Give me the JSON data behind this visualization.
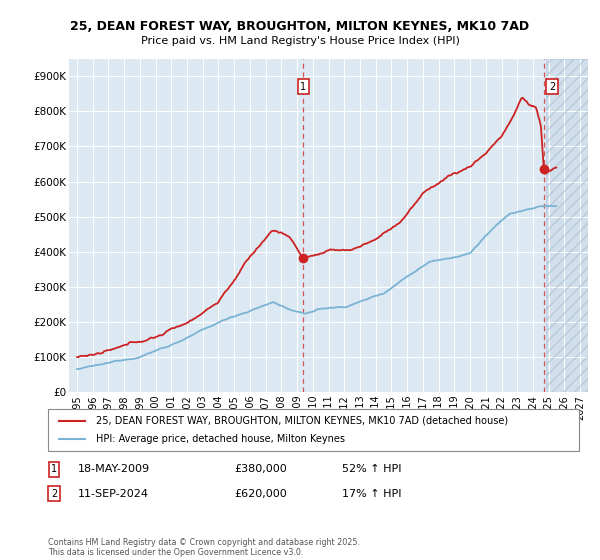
{
  "title_line1": "25, DEAN FOREST WAY, BROUGHTON, MILTON KEYNES, MK10 7AD",
  "title_line2": "Price paid vs. HM Land Registry's House Price Index (HPI)",
  "ylim": [
    0,
    950000
  ],
  "yticks": [
    0,
    100000,
    200000,
    300000,
    400000,
    500000,
    600000,
    700000,
    800000,
    900000
  ],
  "ytick_labels": [
    "£0",
    "£100K",
    "£200K",
    "£300K",
    "£400K",
    "£500K",
    "£600K",
    "£700K",
    "£800K",
    "£900K"
  ],
  "xlim_start": 1994.5,
  "xlim_end": 2027.5,
  "xticks": [
    1995,
    1996,
    1997,
    1998,
    1999,
    2000,
    2001,
    2002,
    2003,
    2004,
    2005,
    2006,
    2007,
    2008,
    2009,
    2010,
    2011,
    2012,
    2013,
    2014,
    2015,
    2016,
    2017,
    2018,
    2019,
    2020,
    2021,
    2022,
    2023,
    2024,
    2025,
    2026,
    2027
  ],
  "hpi_color": "#7ab3d4",
  "price_color": "#cc2222",
  "background_color": "#dce8f2",
  "grid_color": "#ffffff",
  "marker1_x": 2009.38,
  "marker1_y": 380000,
  "marker2_x": 2024.71,
  "marker2_y": 620000,
  "hatch_start": 2024.83,
  "legend_line1": "25, DEAN FOREST WAY, BROUGHTON, MILTON KEYNES, MK10 7AD (detached house)",
  "legend_line2": "HPI: Average price, detached house, Milton Keynes",
  "footer": "Contains HM Land Registry data © Crown copyright and database right 2025.\nThis data is licensed under the Open Government Licence v3.0."
}
